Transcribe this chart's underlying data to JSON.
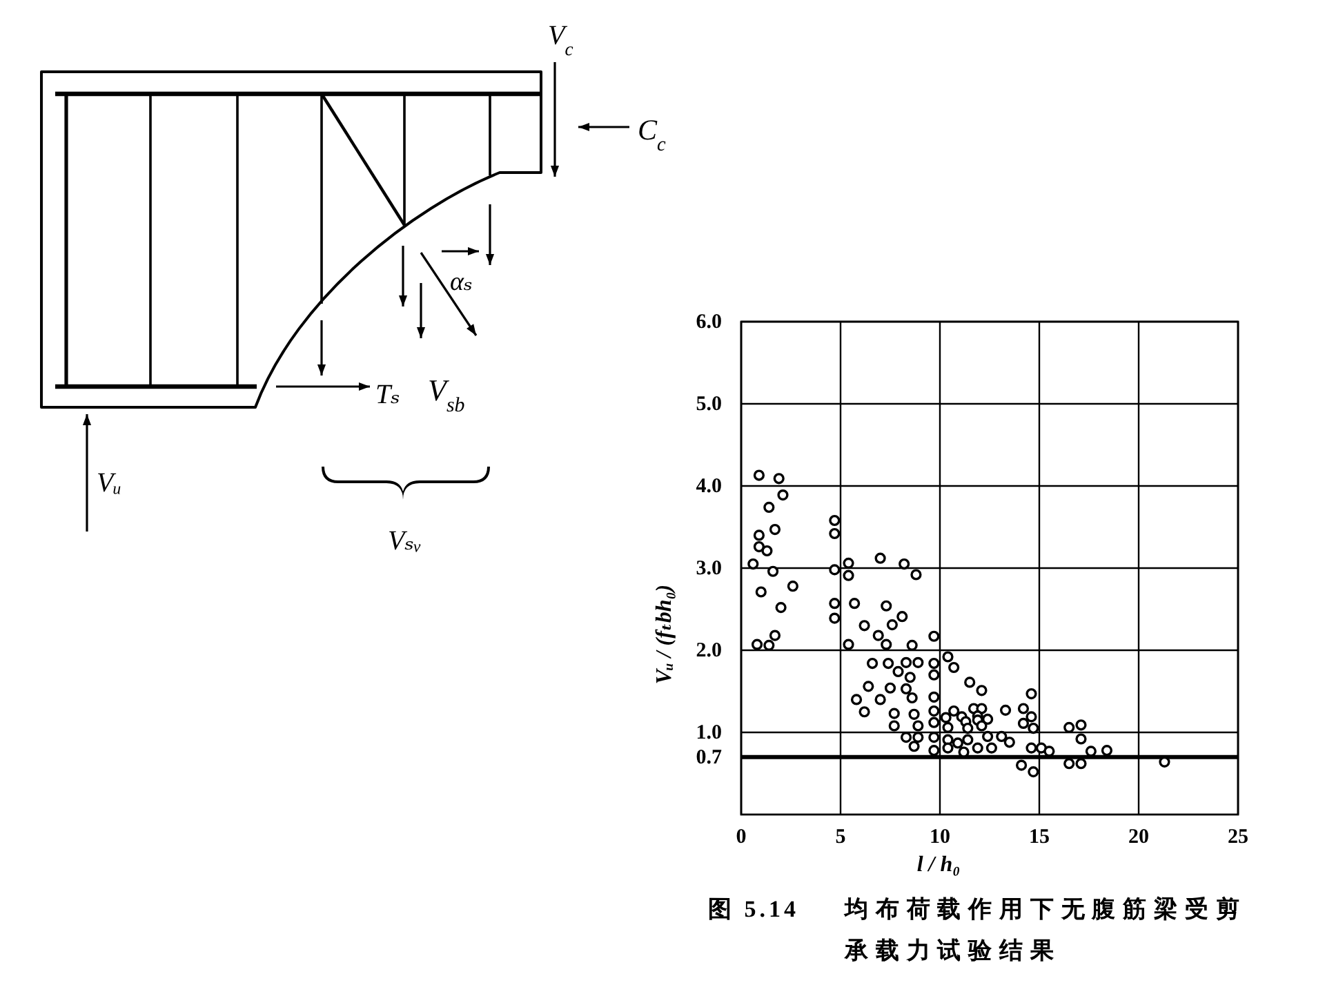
{
  "chart_data": [
    {
      "type": "other",
      "annotations": [
        "V$_{c}$",
        "C$_{c}$",
        "αₛ",
        "Tₛ",
        "V$_{sb}$",
        "Vᵤ",
        "Vₛᵥ"
      ]
    },
    {
      "type": "scatter",
      "xlabel": "l / h₀",
      "ylabel": "Vᵤ / (fₜbh₀)",
      "annotations": [
        "图 5.14　均布荷载作用下无腹筋梁受剪承载力试验结果"
      ],
      "x": [
        0.9,
        1.9,
        2.1,
        1.4,
        1.7,
        0.9,
        0.9,
        1.3,
        0.6,
        1.6,
        1.0,
        2.6,
        2.0,
        1.7,
        0.8,
        1.4,
        4.7,
        4.7,
        4.7,
        5.4,
        5.4,
        4.7,
        5.7,
        4.7,
        5.4,
        7.0,
        8.2,
        8.8,
        7.3,
        8.1,
        6.2,
        7.6,
        6.9,
        9.7,
        7.3,
        8.6,
        10.4,
        6.6,
        7.4,
        8.3,
        8.9,
        9.7,
        10.7,
        7.9,
        8.5,
        9.7,
        6.4,
        7.5,
        8.3,
        8.6,
        5.8,
        7.0,
        9.7,
        6.2,
        7.7,
        8.7,
        9.7,
        10.3,
        10.7,
        8.9,
        7.7,
        9.7,
        10.4,
        8.3,
        8.9,
        9.7,
        10.4,
        8.7,
        9.7,
        10.4,
        11.5,
        12.1,
        14.6,
        11.7,
        12.1,
        13.3,
        14.2,
        11.1,
        11.9,
        14.6,
        11.3,
        11.9,
        12.4,
        14.2,
        14.7,
        11.4,
        12.1,
        16.5,
        17.1,
        10.9,
        11.4,
        12.4,
        13.1,
        13.5,
        11.2,
        11.9,
        12.6,
        14.6,
        15.1,
        15.5,
        17.1,
        17.6,
        18.4,
        14.1,
        14.7,
        16.5,
        17.1,
        21.3
      ],
      "values": [
        4.13,
        4.09,
        3.89,
        3.74,
        3.47,
        3.4,
        3.26,
        3.21,
        3.05,
        2.96,
        2.71,
        2.78,
        2.52,
        2.18,
        2.07,
        2.06,
        3.58,
        3.42,
        2.98,
        3.06,
        2.91,
        2.57,
        2.57,
        2.39,
        2.07,
        3.12,
        3.05,
        2.92,
        2.54,
        2.41,
        2.3,
        2.31,
        2.18,
        2.17,
        2.07,
        2.06,
        1.92,
        1.84,
        1.84,
        1.85,
        1.85,
        1.84,
        1.79,
        1.74,
        1.67,
        1.7,
        1.56,
        1.54,
        1.53,
        1.42,
        1.4,
        1.4,
        1.43,
        1.25,
        1.23,
        1.22,
        1.26,
        1.18,
        1.26,
        1.08,
        1.08,
        1.12,
        1.06,
        0.94,
        0.94,
        0.94,
        0.91,
        0.83,
        0.78,
        0.81,
        1.61,
        1.51,
        1.47,
        1.29,
        1.29,
        1.27,
        1.29,
        1.19,
        1.2,
        1.19,
        1.13,
        1.15,
        1.16,
        1.11,
        1.05,
        1.05,
        1.08,
        1.06,
        1.09,
        0.87,
        0.91,
        0.95,
        0.95,
        0.88,
        0.76,
        0.81,
        0.81,
        0.81,
        0.81,
        0.77,
        0.92,
        0.77,
        0.78,
        0.6,
        0.52,
        0.62,
        0.62,
        0.64
      ],
      "color": "#000000",
      "marker": "circle",
      "xlim": [
        0,
        25
      ],
      "xticks": [
        0,
        5,
        10,
        15,
        20,
        25
      ],
      "ylim": [
        0,
        6
      ],
      "yticks": [
        0.7,
        {
          "value": 1,
          "label": "1.0"
        },
        {
          "value": 2,
          "label": "2.0"
        },
        {
          "value": 3,
          "label": "3.0"
        },
        {
          "value": 4,
          "label": "4.0"
        },
        {
          "value": 5,
          "label": "5.0"
        },
        {
          "value": 6,
          "label": "6.0"
        }
      ],
      "grid": true,
      "ref_lines": [
        {
          "axis": "y",
          "value": 0.7,
          "color": "#000000"
        }
      ]
    }
  ]
}
